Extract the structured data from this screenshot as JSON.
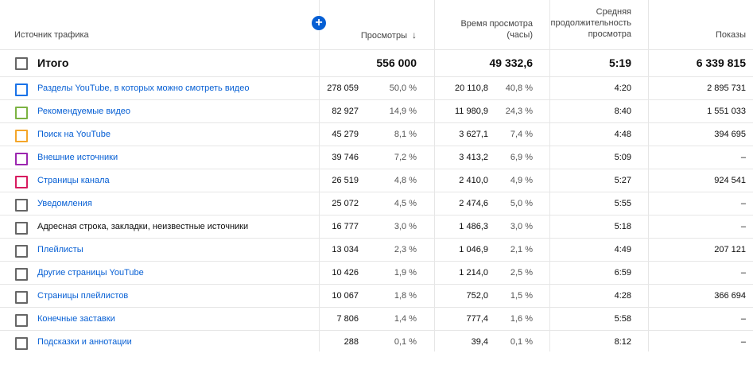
{
  "header": {
    "source": "Источник трафика",
    "views": "Просмотры",
    "sort_icon": "↓",
    "watch_time_line1": "Время просмотра",
    "watch_time_line2": "(часы)",
    "avg_line1": "Средняя",
    "avg_line2": "продолжительность",
    "avg_line3": "просмотра",
    "impressions": "Показы",
    "add_icon": "+"
  },
  "total": {
    "label": "Итого",
    "views": "556 000",
    "watch": "49 332,6",
    "avg": "5:19",
    "impressions": "6 339 815"
  },
  "rows": [
    {
      "label": "Разделы YouTube, в которых можно смотреть видео",
      "link": true,
      "color": "#1a73e8",
      "views": "278 059",
      "views_pct": "50,0 %",
      "watch": "20 110,8",
      "watch_pct": "40,8 %",
      "avg": "4:20",
      "impr": "2 895 731"
    },
    {
      "label": "Рекомендуемые видео",
      "link": true,
      "color": "#7cb342",
      "views": "82 927",
      "views_pct": "14,9 %",
      "watch": "11 980,9",
      "watch_pct": "24,3 %",
      "avg": "8:40",
      "impr": "1 551 033"
    },
    {
      "label": "Поиск на YouTube",
      "link": true,
      "color": "#f4a62a",
      "views": "45 279",
      "views_pct": "8,1 %",
      "watch": "3 627,1",
      "watch_pct": "7,4 %",
      "avg": "4:48",
      "impr": "394 695"
    },
    {
      "label": "Внешние источники",
      "link": true,
      "color": "#9c27b0",
      "views": "39 746",
      "views_pct": "7,2 %",
      "watch": "3 413,2",
      "watch_pct": "6,9 %",
      "avg": "5:09",
      "impr": "–"
    },
    {
      "label": "Страницы канала",
      "link": true,
      "color": "#d81b60",
      "views": "26 519",
      "views_pct": "4,8 %",
      "watch": "2 410,0",
      "watch_pct": "4,9 %",
      "avg": "5:27",
      "impr": "924 541"
    },
    {
      "label": "Уведомления",
      "link": true,
      "color": "#666666",
      "views": "25 072",
      "views_pct": "4,5 %",
      "watch": "2 474,6",
      "watch_pct": "5,0 %",
      "avg": "5:55",
      "impr": "–"
    },
    {
      "label": "Адресная строка, закладки, неизвестные источники",
      "link": false,
      "color": "#666666",
      "views": "16 777",
      "views_pct": "3,0 %",
      "watch": "1 486,3",
      "watch_pct": "3,0 %",
      "avg": "5:18",
      "impr": "–"
    },
    {
      "label": "Плейлисты",
      "link": true,
      "color": "#666666",
      "views": "13 034",
      "views_pct": "2,3 %",
      "watch": "1 046,9",
      "watch_pct": "2,1 %",
      "avg": "4:49",
      "impr": "207 121"
    },
    {
      "label": "Другие страницы YouTube",
      "link": true,
      "color": "#666666",
      "views": "10 426",
      "views_pct": "1,9 %",
      "watch": "1 214,0",
      "watch_pct": "2,5 %",
      "avg": "6:59",
      "impr": "–"
    },
    {
      "label": "Страницы плейлистов",
      "link": true,
      "color": "#666666",
      "views": "10 067",
      "views_pct": "1,8 %",
      "watch": "752,0",
      "watch_pct": "1,5 %",
      "avg": "4:28",
      "impr": "366 694"
    },
    {
      "label": "Конечные заставки",
      "link": true,
      "color": "#666666",
      "views": "7 806",
      "views_pct": "1,4 %",
      "watch": "777,4",
      "watch_pct": "1,6 %",
      "avg": "5:58",
      "impr": "–"
    },
    {
      "label": "Подсказки и аннотации",
      "link": true,
      "color": "#666666",
      "views": "288",
      "views_pct": "0,1 %",
      "watch": "39,4",
      "watch_pct": "0,1 %",
      "avg": "8:12",
      "impr": "–"
    }
  ]
}
